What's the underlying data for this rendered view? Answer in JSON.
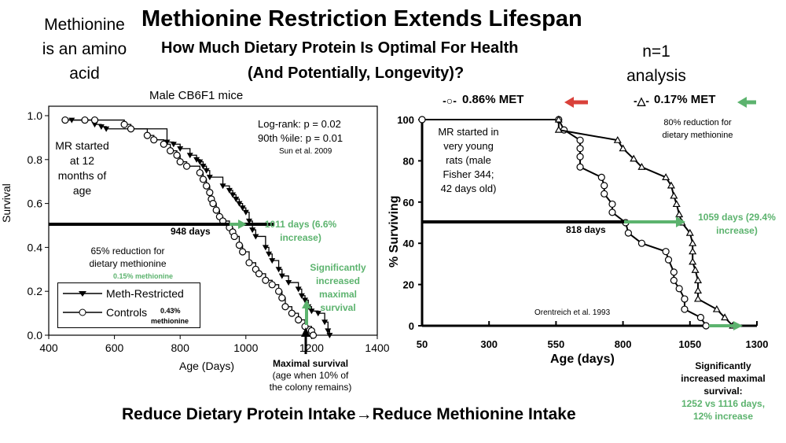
{
  "title": "Methionine Restriction Extends Lifespan",
  "subtitle_line1": "How Much Dietary Protein Is Optimal For Health",
  "subtitle_line2": "(And Potentially, Longevity)?",
  "side_left": [
    "Methionine",
    "is an amino",
    "acid"
  ],
  "side_right": [
    "n=1",
    "analysis"
  ],
  "footer": "Reduce Dietary Protein Intake→Reduce Methionine Intake",
  "colors": {
    "green": "#5cb36e",
    "red": "#d9413a"
  },
  "chart_data": [
    {
      "type": "line",
      "title": "Male CB6F1 mice",
      "xlabel": "Age (Days)",
      "ylabel": "Survival",
      "xlim": [
        400,
        1400
      ],
      "ylim": [
        0,
        1
      ],
      "xticks": [
        "400",
        "600",
        "800",
        "1000",
        "1200",
        "1400"
      ],
      "yticks": [
        "0.0",
        "0.2",
        "0.4",
        "0.6",
        "0.8",
        "1.0"
      ],
      "series": [
        {
          "name": "Meth-Restricted",
          "marker": "triangle-down",
          "points": [
            [
              470,
              0.98
            ],
            [
              540,
              0.96
            ],
            [
              560,
              0.95
            ],
            [
              575,
              0.94
            ],
            [
              760,
              0.88
            ],
            [
              780,
              0.87
            ],
            [
              800,
              0.85
            ],
            [
              830,
              0.82
            ],
            [
              850,
              0.8
            ],
            [
              860,
              0.79
            ],
            [
              870,
              0.77
            ],
            [
              880,
              0.75
            ],
            [
              890,
              0.72
            ],
            [
              930,
              0.68
            ],
            [
              950,
              0.66
            ],
            [
              960,
              0.64
            ],
            [
              970,
              0.62
            ],
            [
              980,
              0.6
            ],
            [
              990,
              0.58
            ],
            [
              1000,
              0.56
            ],
            [
              1010,
              0.52
            ],
            [
              1020,
              0.48
            ],
            [
              1030,
              0.45
            ],
            [
              1060,
              0.4
            ],
            [
              1070,
              0.37
            ],
            [
              1080,
              0.34
            ],
            [
              1100,
              0.3
            ],
            [
              1110,
              0.27
            ],
            [
              1130,
              0.24
            ],
            [
              1160,
              0.21
            ],
            [
              1170,
              0.18
            ],
            [
              1180,
              0.16
            ],
            [
              1190,
              0.13
            ],
            [
              1200,
              0.11
            ],
            [
              1220,
              0.1
            ],
            [
              1240,
              0.06
            ],
            [
              1250,
              0.02
            ],
            [
              1255,
              0
            ]
          ]
        },
        {
          "name": "Controls",
          "marker": "circle",
          "points": [
            [
              450,
              0.98
            ],
            [
              510,
              0.98
            ],
            [
              540,
              0.98
            ],
            [
              630,
              0.96
            ],
            [
              650,
              0.94
            ],
            [
              700,
              0.91
            ],
            [
              720,
              0.89
            ],
            [
              750,
              0.87
            ],
            [
              770,
              0.84
            ],
            [
              790,
              0.82
            ],
            [
              800,
              0.79
            ],
            [
              820,
              0.77
            ],
            [
              860,
              0.74
            ],
            [
              870,
              0.71
            ],
            [
              880,
              0.68
            ],
            [
              890,
              0.65
            ],
            [
              895,
              0.62
            ],
            [
              900,
              0.6
            ],
            [
              910,
              0.57
            ],
            [
              920,
              0.54
            ],
            [
              930,
              0.52
            ],
            [
              950,
              0.49
            ],
            [
              960,
              0.47
            ],
            [
              965,
              0.45
            ],
            [
              980,
              0.41
            ],
            [
              990,
              0.38
            ],
            [
              1010,
              0.33
            ],
            [
              1030,
              0.3
            ],
            [
              1040,
              0.28
            ],
            [
              1060,
              0.25
            ],
            [
              1080,
              0.23
            ],
            [
              1100,
              0.2
            ],
            [
              1110,
              0.17
            ],
            [
              1120,
              0.13
            ],
            [
              1140,
              0.1
            ],
            [
              1160,
              0.07
            ],
            [
              1180,
              0.04
            ],
            [
              1200,
              0.02
            ],
            [
              1205,
              0
            ]
          ]
        }
      ],
      "annotations": {
        "stats1": "Log-rank: p = 0.02",
        "stats2": "90th %ile: p = 0.01",
        "cite": "Sun et al. 2009",
        "mr_start": [
          "MR started",
          "at 12",
          "months of",
          "age"
        ],
        "median_ctrl": "948 days",
        "median_mr": [
          "1011 days (6.6%",
          "increase)"
        ],
        "reduction": [
          "65% reduction for",
          "dietary methionine"
        ],
        "mr_dose": "0.15% methionine",
        "ctrl_dose": [
          "0.43%",
          "methionine"
        ],
        "max_sig": [
          "Significantly",
          "increased",
          "maximal",
          "survival"
        ],
        "max_label": [
          "Maximal survival",
          "(age when 10% of",
          "the colony remains)"
        ]
      }
    },
    {
      "type": "line",
      "xlabel": "Age (days)",
      "ylabel": "% Surviving",
      "xlim": [
        50,
        1300
      ],
      "ylim": [
        0,
        100
      ],
      "xticks": [
        "50",
        "300",
        "550",
        "800",
        "1050",
        "1300"
      ],
      "yticks": [
        "0",
        "20",
        "40",
        "60",
        "80",
        "100"
      ],
      "series": [
        {
          "name": "0.86% MET",
          "marker": "circle",
          "points": [
            [
              50,
              100
            ],
            [
              560,
              100
            ],
            [
              580,
              95
            ],
            [
              640,
              90
            ],
            [
              640,
              86
            ],
            [
              640,
              82
            ],
            [
              640,
              77
            ],
            [
              720,
              72
            ],
            [
              730,
              68
            ],
            [
              730,
              64
            ],
            [
              760,
              59
            ],
            [
              760,
              55
            ],
            [
              810,
              50
            ],
            [
              820,
              45
            ],
            [
              870,
              40
            ],
            [
              960,
              36
            ],
            [
              970,
              32
            ],
            [
              990,
              26
            ],
            [
              990,
              22
            ],
            [
              1010,
              18
            ],
            [
              1030,
              13
            ],
            [
              1030,
              8
            ],
            [
              1090,
              4
            ],
            [
              1110,
              0
            ]
          ]
        },
        {
          "name": "0.17% MET",
          "marker": "triangle",
          "points": [
            [
              560,
              100
            ],
            [
              560,
              95
            ],
            [
              780,
              90
            ],
            [
              800,
              86
            ],
            [
              840,
              81
            ],
            [
              870,
              77
            ],
            [
              960,
              72
            ],
            [
              980,
              68
            ],
            [
              990,
              63
            ],
            [
              1000,
              59
            ],
            [
              1010,
              54
            ],
            [
              1020,
              50
            ],
            [
              1050,
              45
            ],
            [
              1060,
              40
            ],
            [
              1060,
              36
            ],
            [
              1060,
              31
            ],
            [
              1070,
              27
            ],
            [
              1080,
              22
            ],
            [
              1080,
              17
            ],
            [
              1080,
              13
            ],
            [
              1150,
              8
            ],
            [
              1180,
              4
            ],
            [
              1210,
              0
            ]
          ]
        }
      ],
      "annotations": {
        "mr_start": [
          "MR started in",
          "very young",
          "rats (male",
          "Fisher 344;",
          "42 days old)"
        ],
        "reduction": [
          "80% reduction for",
          "dietary methionine"
        ],
        "median_ctrl": "818 days",
        "median_mr": [
          "1059 days (29.4%",
          "increase)"
        ],
        "cite": "Orentreich et al. 1993",
        "max_sig": [
          "Significantly",
          "increased maximal",
          "survival:"
        ],
        "max_vals": [
          "1252 vs 1116 days,",
          "12% increase"
        ]
      }
    }
  ]
}
